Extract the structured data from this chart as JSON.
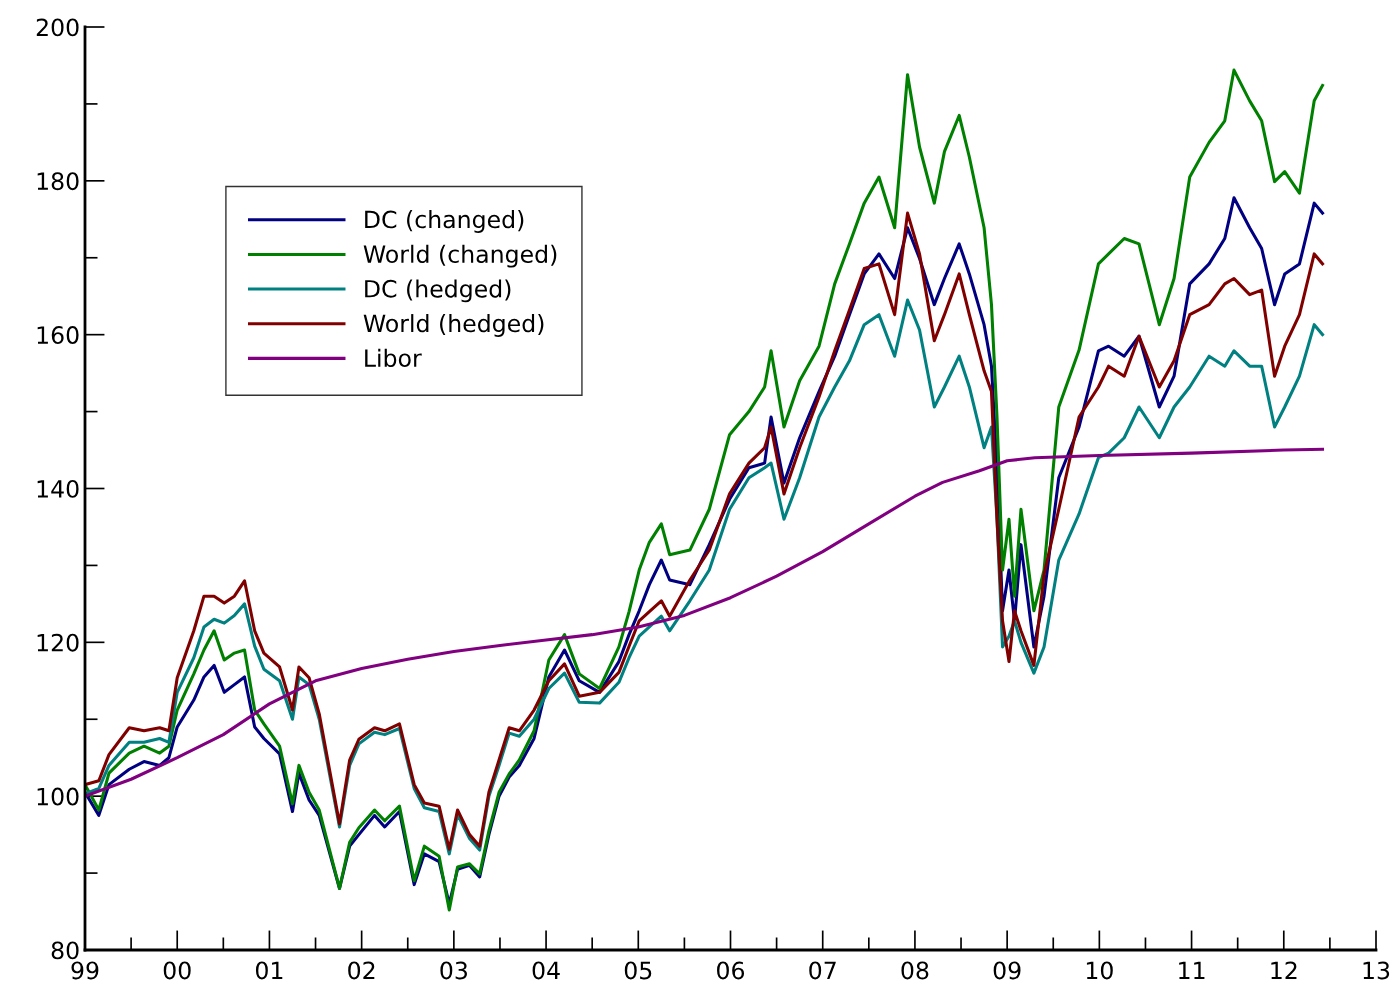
{
  "chart_data": {
    "type": "line",
    "x": [
      1999.0,
      1999.15,
      1999.26,
      1999.48,
      1999.64,
      1999.81,
      1999.91,
      2000.0,
      2000.18,
      2000.29,
      2000.4,
      2000.51,
      2000.62,
      2000.73,
      2000.84,
      2000.94,
      2001.11,
      2001.25,
      2001.32,
      2001.43,
      2001.54,
      2001.76,
      2001.87,
      2001.97,
      2002.14,
      2002.25,
      2002.41,
      2002.57,
      2002.68,
      2002.84,
      2002.95,
      2003.04,
      2003.17,
      2003.28,
      2003.38,
      2003.49,
      2003.6,
      2003.71,
      2003.87,
      2004.03,
      2004.2,
      2004.36,
      2004.58,
      2004.79,
      2004.9,
      2005.01,
      2005.12,
      2005.25,
      2005.34,
      2005.56,
      2005.77,
      2005.99,
      2006.2,
      2006.37,
      2006.44,
      2006.58,
      2006.75,
      2006.96,
      2007.13,
      2007.29,
      2007.45,
      2007.61,
      2007.78,
      2007.92,
      2008.05,
      2008.21,
      2008.32,
      2008.48,
      2008.59,
      2008.75,
      2008.83,
      2008.89,
      2008.95,
      2009.02,
      2009.08,
      2009.15,
      2009.29,
      2009.4,
      2009.56,
      2009.78,
      2009.99,
      2010.1,
      2010.27,
      2010.43,
      2010.65,
      2010.81,
      2010.98,
      2011.19,
      2011.36,
      2011.46,
      2011.63,
      2011.76,
      2011.9,
      2012.01,
      2012.17,
      2012.33,
      2012.42
    ],
    "series": [
      {
        "name": "DC (changed)",
        "color": "#000080",
        "values": [
          100.5,
          97.5,
          101.5,
          103.5,
          104.5,
          104,
          105,
          109,
          112.5,
          115.5,
          117,
          113.5,
          114.5,
          115.5,
          109,
          107.5,
          105.5,
          98,
          103,
          99.5,
          97.5,
          88,
          93.5,
          95,
          97.5,
          96,
          98,
          88.5,
          92.5,
          91.5,
          86,
          90.5,
          91,
          89.5,
          95,
          100,
          102.5,
          104,
          107.5,
          115.5,
          119,
          115,
          113.5,
          117.5,
          121,
          124.1,
          127.5,
          130.7,
          128.1,
          127.5,
          132.7,
          138.6,
          142.7,
          143.3,
          149.3,
          140.7,
          146.6,
          152.6,
          157.2,
          162.6,
          167.9,
          170.5,
          167.3,
          173.9,
          169.9,
          163.9,
          167.3,
          171.8,
          167.9,
          161.3,
          155.9,
          142.7,
          124.1,
          129.4,
          122.8,
          132.7,
          119.4,
          126,
          141.4,
          148,
          157.9,
          158.5,
          157.2,
          159.8,
          150.6,
          154.6,
          166.6,
          169.2,
          172.5,
          177.8,
          173.9,
          171.2,
          163.9,
          167.9,
          169.2,
          177.1,
          175.8
        ]
      },
      {
        "name": "World (changed)",
        "color": "#008000",
        "values": [
          101.5,
          98.2,
          103,
          105.6,
          106.5,
          105.6,
          106.5,
          111.2,
          115.9,
          119,
          121.5,
          117.7,
          118.6,
          119,
          111.2,
          109.4,
          106.5,
          99,
          104,
          100.5,
          98.2,
          88,
          94,
          95.9,
          98.2,
          96.8,
          98.7,
          89,
          93.5,
          92.2,
          85.2,
          90.8,
          91.2,
          89.9,
          95.5,
          100.5,
          102.9,
          104.7,
          108.5,
          117.7,
          121,
          115.9,
          114,
          119.4,
          124,
          129.4,
          133,
          135.4,
          131.4,
          132,
          137.3,
          147,
          150,
          153.2,
          157.9,
          148,
          154,
          158.5,
          166.6,
          171.8,
          177.1,
          180.5,
          173.9,
          193.8,
          184.4,
          177.1,
          183.8,
          188.5,
          183.1,
          173.9,
          163.9,
          149.3,
          129.4,
          136,
          126,
          137.3,
          124.1,
          129.4,
          150.6,
          158,
          169.2,
          170.5,
          172.5,
          171.8,
          161.3,
          167.3,
          180.5,
          185,
          187.8,
          194.4,
          190.4,
          187.8,
          179.9,
          181.2,
          178.4,
          190.4,
          192.4
        ]
      },
      {
        "name": "DC (hedged)",
        "color": "#008080",
        "values": [
          100.3,
          101,
          104,
          107,
          107,
          107.5,
          107,
          113.5,
          118,
          122,
          123,
          122.5,
          123.5,
          125,
          119.5,
          116.5,
          115,
          110,
          115.5,
          114.5,
          110,
          96,
          104,
          106.8,
          108.3,
          108,
          108.8,
          101,
          98.5,
          98,
          92.5,
          97.6,
          94.5,
          93,
          100,
          104,
          108.2,
          107.8,
          110,
          114,
          116,
          112.2,
          112.1,
          114.8,
          118,
          120.8,
          122,
          123.4,
          121.5,
          125.4,
          129.4,
          137.3,
          141.4,
          142.7,
          143.3,
          136,
          141.4,
          149.3,
          153.2,
          156.6,
          161.3,
          162.6,
          157.2,
          164.5,
          160.6,
          150.6,
          153.2,
          157.2,
          153.2,
          145.3,
          148,
          136,
          119.4,
          120.8,
          122.8,
          120,
          116,
          119.4,
          130.7,
          136.7,
          144,
          144.6,
          146.6,
          150.6,
          146.6,
          150.6,
          153.2,
          157.2,
          155.9,
          157.9,
          155.9,
          155.9,
          148,
          150.6,
          154.6,
          161.3,
          160
        ]
      },
      {
        "name": "World (hedged)",
        "color": "#800000",
        "values": [
          101.5,
          102,
          105.4,
          108.9,
          108.5,
          108.9,
          108.5,
          115.4,
          121.5,
          126,
          126,
          125.1,
          126,
          128,
          121.5,
          118.6,
          116.8,
          111.2,
          116.8,
          115.4,
          110.7,
          96.4,
          104.7,
          107.4,
          108.9,
          108.5,
          109.4,
          101.5,
          99.1,
          98.7,
          93.1,
          98.2,
          95,
          93.5,
          100.5,
          104.7,
          108.9,
          108.5,
          111.2,
          115,
          117.2,
          113,
          113.5,
          116.1,
          119.5,
          122.8,
          124,
          125.4,
          123.4,
          128.1,
          132,
          139.3,
          143.3,
          145.3,
          148,
          139.3,
          145.3,
          151.9,
          157.9,
          163.2,
          168.6,
          169.2,
          162.6,
          175.8,
          170.5,
          159.2,
          162.6,
          167.9,
          162.6,
          155.3,
          152.6,
          136,
          122.8,
          117.5,
          124.1,
          121.5,
          117,
          128.8,
          137.3,
          149.3,
          153.2,
          155.9,
          154.6,
          159.8,
          153.2,
          156.6,
          162.6,
          163.9,
          166.6,
          167.3,
          165.2,
          165.8,
          154.6,
          158.5,
          162.6,
          170.5,
          169.2
        ]
      },
      {
        "name": "Libor",
        "color": "#800080",
        "x": [
          1999.0,
          1999.5,
          2000.0,
          2000.5,
          2001.0,
          2001.5,
          2002.0,
          2002.5,
          2003.0,
          2003.5,
          2004.0,
          2004.5,
          2005.0,
          2005.5,
          2006.0,
          2006.5,
          2007.0,
          2007.5,
          2008.0,
          2008.3,
          2008.7,
          2009.0,
          2009.3,
          2010.0,
          2011.0,
          2012.0,
          2012.42
        ],
        "values": [
          100,
          102.2,
          105,
          108,
          112,
          115,
          116.6,
          117.8,
          118.8,
          119.6,
          120.3,
          121,
          122,
          123.5,
          125.8,
          128.6,
          131.8,
          135.4,
          139,
          140.8,
          142.3,
          143.6,
          144,
          144.3,
          144.6,
          145,
          145.1
        ]
      }
    ],
    "xlim": [
      1999,
      2013
    ],
    "xticks": [
      {
        "value": 1999,
        "label": "99"
      },
      {
        "value": 1999.5,
        "label": null
      },
      {
        "value": 2000,
        "label": "00"
      },
      {
        "value": 2000.5,
        "label": null
      },
      {
        "value": 2001,
        "label": "01"
      },
      {
        "value": 2001.5,
        "label": null
      },
      {
        "value": 2002,
        "label": "02"
      },
      {
        "value": 2002.5,
        "label": null
      },
      {
        "value": 2003,
        "label": "03"
      },
      {
        "value": 2003.5,
        "label": null
      },
      {
        "value": 2004,
        "label": "04"
      },
      {
        "value": 2004.5,
        "label": null
      },
      {
        "value": 2005,
        "label": "05"
      },
      {
        "value": 2005.5,
        "label": null
      },
      {
        "value": 2006,
        "label": "06"
      },
      {
        "value": 2006.5,
        "label": null
      },
      {
        "value": 2007,
        "label": "07"
      },
      {
        "value": 2007.5,
        "label": null
      },
      {
        "value": 2008,
        "label": "08"
      },
      {
        "value": 2008.5,
        "label": null
      },
      {
        "value": 2009,
        "label": "09"
      },
      {
        "value": 2009.5,
        "label": null
      },
      {
        "value": 2010,
        "label": "10"
      },
      {
        "value": 2010.5,
        "label": null
      },
      {
        "value": 2011,
        "label": "11"
      },
      {
        "value": 2011.5,
        "label": null
      },
      {
        "value": 2012,
        "label": "12"
      },
      {
        "value": 2012.5,
        "label": null
      },
      {
        "value": 2013,
        "label": "13"
      }
    ],
    "ylim": [
      80,
      200
    ],
    "yticks": [
      80,
      {
        "value": 90,
        "label": null
      },
      100,
      {
        "value": 110,
        "label": null
      },
      120,
      {
        "value": 130,
        "label": null
      },
      140,
      {
        "value": 150,
        "label": null
      },
      160,
      {
        "value": 170,
        "label": null
      },
      180,
      {
        "value": 190,
        "label": null
      },
      200
    ],
    "grid": false,
    "legend": "top left",
    "line_style": "solid",
    "marker": "none"
  }
}
